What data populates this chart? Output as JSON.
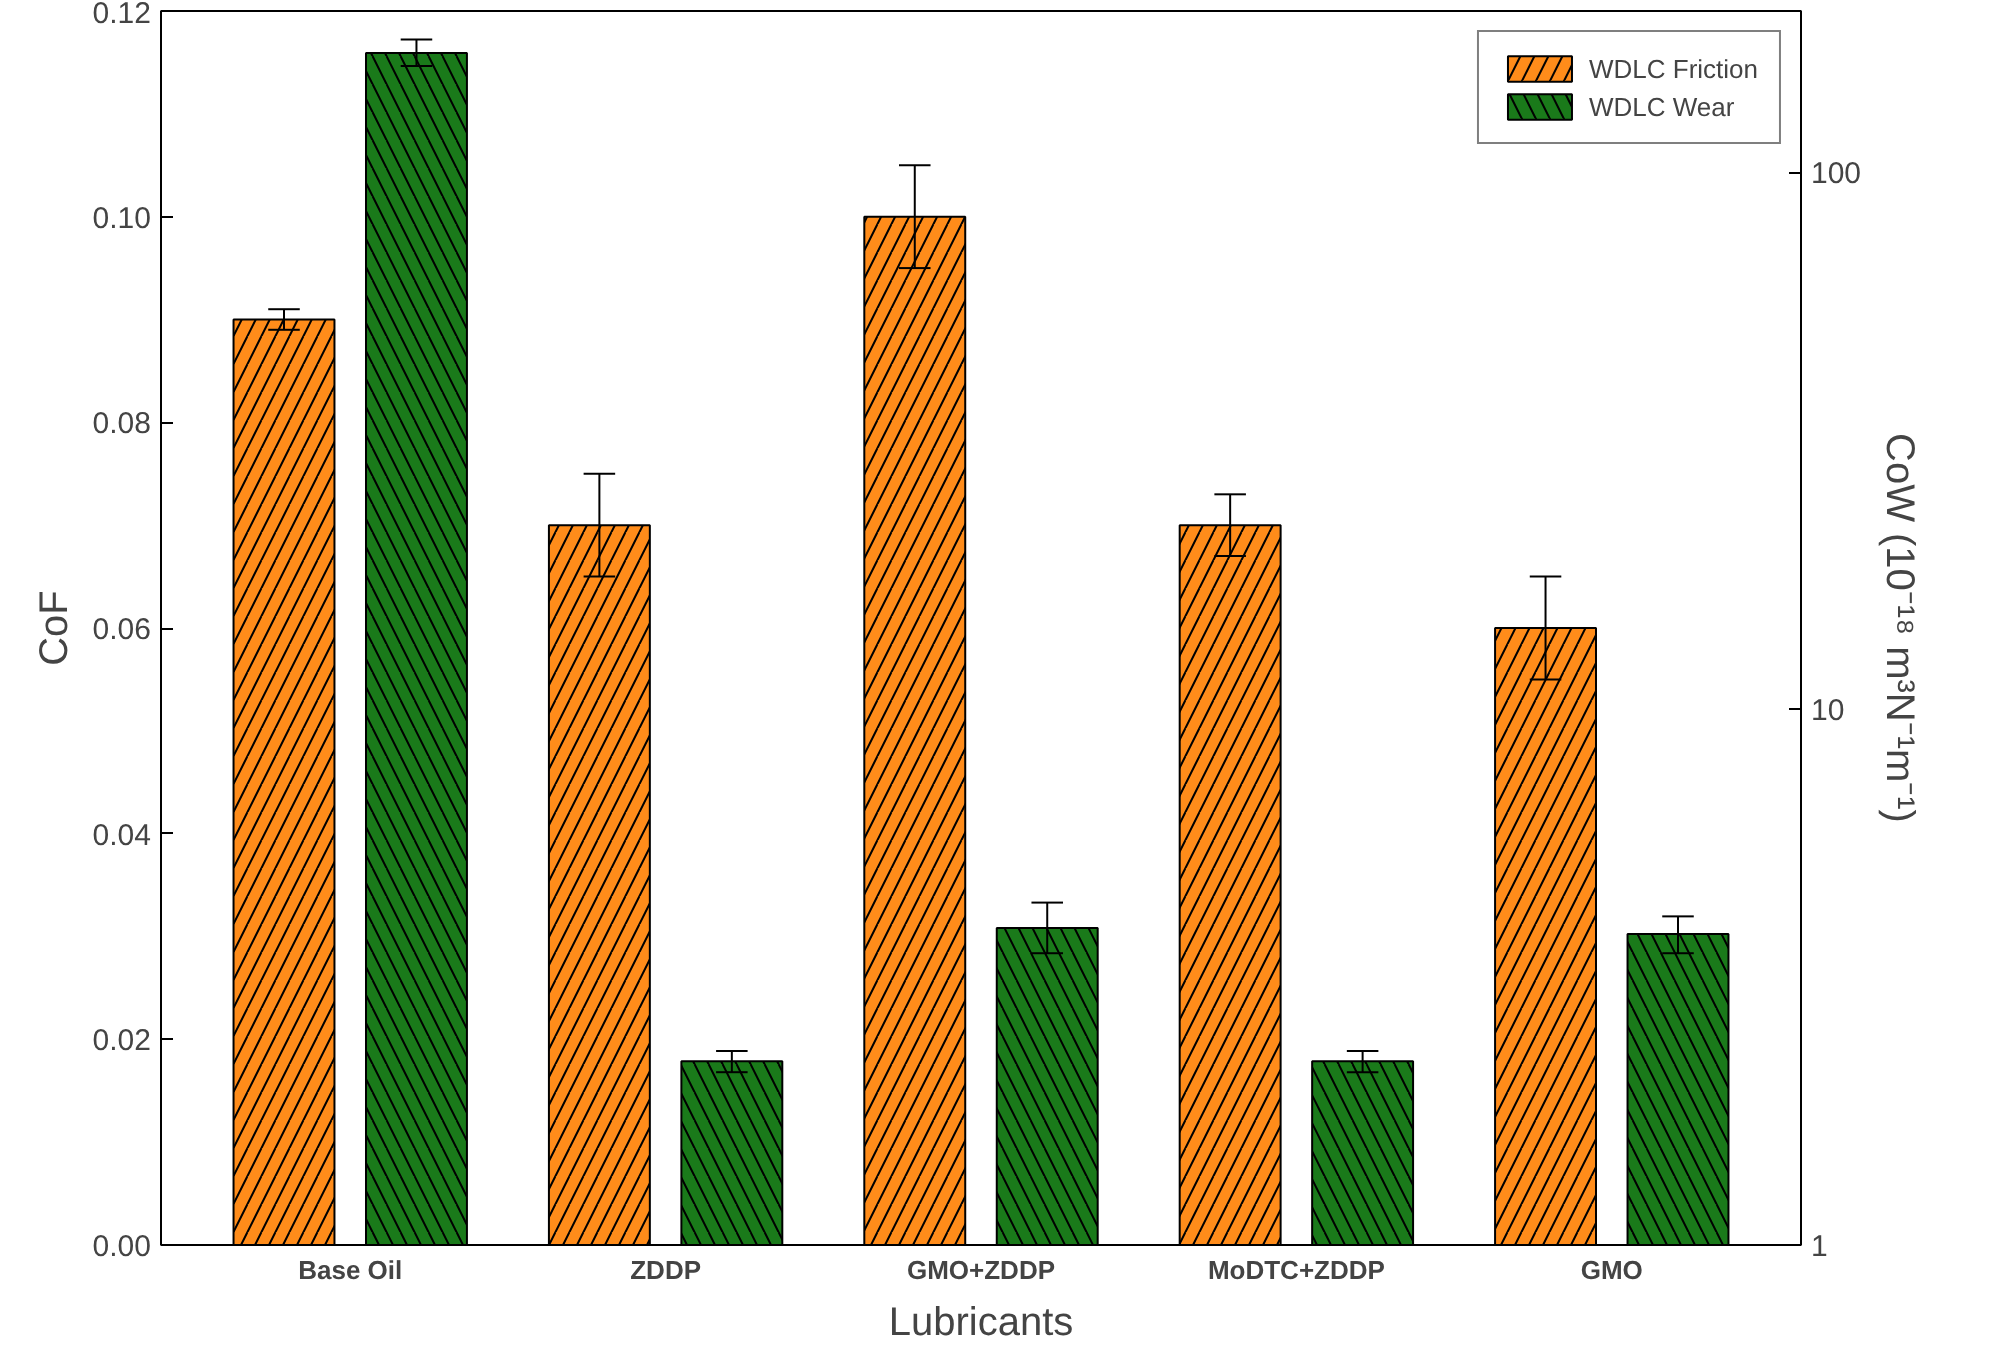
{
  "chart_data": {
    "type": "bar",
    "xlabel": "Lubricants",
    "ylabel": "CoF",
    "y2label": "CoW (10⁻¹⁸ m³N⁻¹m⁻¹)",
    "categories": [
      "Base Oil",
      "ZDDP",
      "GMO+ZDDP",
      "MoDTC+ZDDP",
      "GMO"
    ],
    "series": [
      {
        "name": "WDLC Friction",
        "color": "#ff8c1a",
        "values": [
          0.09,
          0.07,
          0.1,
          0.07,
          0.06
        ],
        "errors": [
          0.001,
          0.005,
          0.005,
          0.003,
          0.005
        ]
      },
      {
        "name": "WDLC Wear",
        "color": "#1a7a1a",
        "axis": "y2",
        "values": [
          167,
          2.2,
          3.9,
          2.2,
          3.8
        ],
        "errors": [
          [
            158,
            177
          ],
          [
            2.1,
            2.3
          ],
          [
            3.5,
            4.35
          ],
          [
            2.1,
            2.3
          ],
          [
            3.5,
            4.1
          ]
        ]
      }
    ],
    "ylim": [
      0,
      0.12
    ],
    "yticks": [
      {
        "value": 0,
        "label": "0.00"
      },
      0.02,
      0.04,
      0.06,
      0.08,
      {
        "value": 0.1,
        "label": "0.10"
      },
      0.12
    ],
    "y2lim": [
      1,
      200
    ],
    "y2ticks": [
      1,
      10,
      100
    ],
    "log": "y2",
    "grid": false,
    "legend": "top right"
  }
}
